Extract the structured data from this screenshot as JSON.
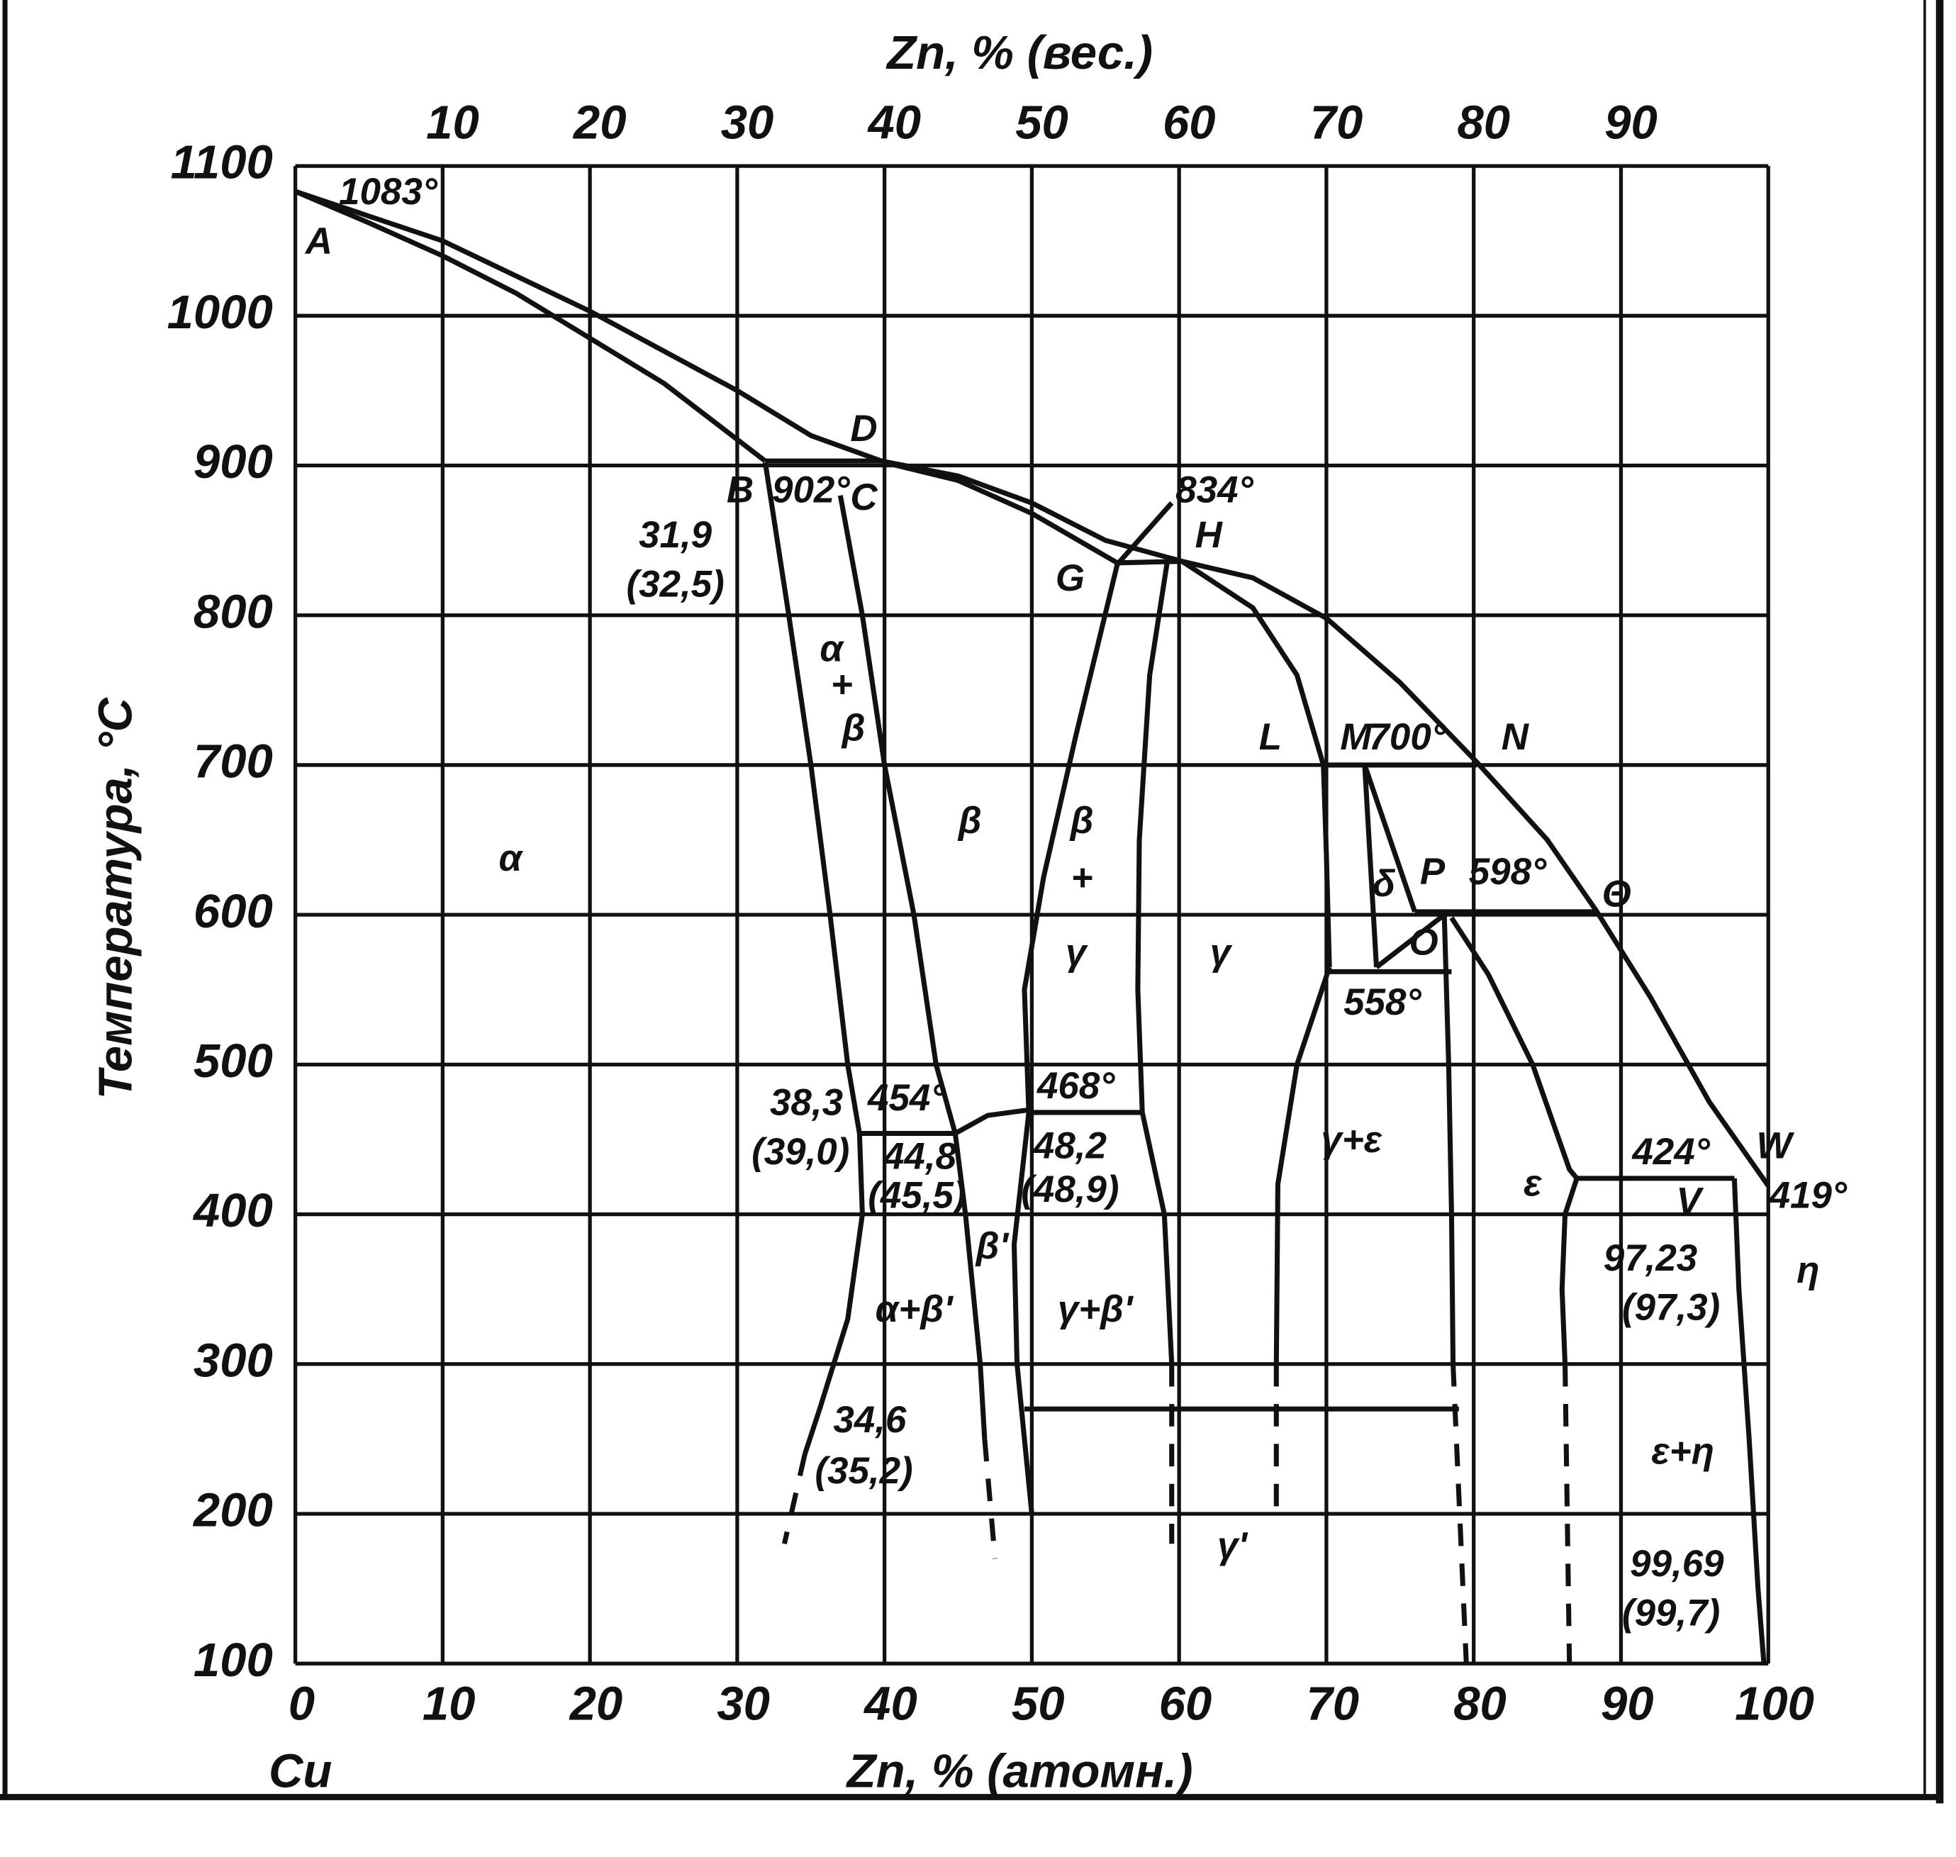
{
  "chart_data": {
    "type": "phase-diagram",
    "top_axis_title": "Zn, % (вес.)",
    "x_axis_title": "Zn, % (атомн.)",
    "y_axis_title": "Температура, °C",
    "x_origin_label": "Cu",
    "xlim": [
      0,
      100
    ],
    "ylim": [
      100,
      1100
    ],
    "xticks": [
      0,
      10,
      20,
      30,
      40,
      50,
      60,
      70,
      80,
      90,
      100
    ],
    "yticks": [
      100,
      200,
      300,
      400,
      500,
      600,
      700,
      800,
      900,
      1000,
      1100
    ],
    "x2ticks": [
      10,
      20,
      30,
      40,
      50,
      60,
      70,
      80,
      90
    ],
    "grid": true,
    "color": "#111111",
    "series": [
      {
        "x": [
          0,
          10,
          20,
          30,
          35,
          39.8,
          45,
          50,
          55,
          60.2,
          65,
          70,
          75,
          80.2,
          85,
          88.3,
          92,
          96,
          100
        ],
        "values": [
          1083,
          1050,
          1003,
          950,
          920,
          903,
          893,
          875,
          850,
          836,
          825,
          798,
          755,
          702,
          650,
          603,
          545,
          475,
          419
        ]
      },
      {
        "x": [
          0,
          5,
          10,
          15,
          20,
          25,
          31.9
        ],
        "values": [
          1083,
          1062,
          1040,
          1015,
          985,
          955,
          903
        ]
      },
      {
        "x": [
          31.9,
          40
        ],
        "values": [
          903,
          903
        ]
      },
      {
        "x": [
          40,
          45,
          50,
          55.8
        ],
        "values": [
          902,
          890,
          868,
          835
        ]
      },
      {
        "x": [
          55.8,
          60.2
        ],
        "values": [
          835,
          836
        ]
      },
      {
        "x": [
          31.9,
          33.5,
          35,
          36.3,
          37.5,
          38.3,
          38.5,
          37.5,
          35.6,
          34.6
        ],
        "values": [
          902,
          800,
          700,
          600,
          500,
          454,
          400,
          330,
          270,
          240
        ]
      },
      {
        "x": [
          34.6,
          33.2
        ],
        "values": [
          240,
          180
        ],
        "dash": true
      },
      {
        "x": [
          37,
          38.5,
          40,
          42,
          43.5,
          44.8,
          45.5,
          46.5,
          46.8
        ],
        "values": [
          880,
          800,
          700,
          600,
          500,
          454,
          400,
          300,
          250
        ]
      },
      {
        "x": [
          46.8,
          47.5
        ],
        "values": [
          250,
          170
        ],
        "dash": true
      },
      {
        "x": [
          38.3,
          44.8
        ],
        "values": [
          454,
          454
        ]
      },
      {
        "x": [
          44.8,
          47,
          50
        ],
        "values": [
          454,
          466,
          470
        ]
      },
      {
        "x": [
          50,
          57.5
        ],
        "values": [
          468,
          468
        ]
      },
      {
        "x": [
          55.8,
          53,
          50.8,
          49.5,
          49.8,
          48.8,
          49,
          49.5,
          50
        ],
        "values": [
          834,
          720,
          625,
          550,
          468,
          380,
          300,
          250,
          200
        ]
      },
      {
        "x": [
          59.2,
          58,
          57.3,
          57.2,
          57.5,
          59,
          59.5
        ],
        "values": [
          836,
          760,
          650,
          550,
          468,
          400,
          300
        ]
      },
      {
        "x": [
          59.5,
          59.5
        ],
        "values": [
          300,
          180
        ],
        "dash": true
      },
      {
        "x": [
          60.2,
          65,
          68,
          69.8,
          70,
          70.2
        ],
        "values": [
          836,
          805,
          760,
          700,
          640,
          565
        ]
      },
      {
        "x": [
          69.8,
          80.2
        ],
        "values": [
          700,
          700
        ]
      },
      {
        "x": [
          72.6,
          73.4
        ],
        "values": [
          700,
          565
        ]
      },
      {
        "x": [
          72.6,
          76
        ],
        "values": [
          700,
          602
        ]
      },
      {
        "x": [
          76,
          88.3
        ],
        "values": [
          602,
          602
        ]
      },
      {
        "x": [
          73.4,
          78
        ],
        "values": [
          565,
          600
        ]
      },
      {
        "x": [
          70.2,
          78.5
        ],
        "values": [
          562,
          562
        ]
      },
      {
        "x": [
          78,
          78.3,
          78.5,
          78.6
        ],
        "values": [
          600,
          500,
          400,
          300
        ]
      },
      {
        "x": [
          78.6,
          79.5
        ],
        "values": [
          300,
          100
        ],
        "dash": true
      },
      {
        "x": [
          70.2,
          68,
          66.7,
          66.6
        ],
        "values": [
          565,
          500,
          420,
          300
        ]
      },
      {
        "x": [
          66.6,
          66.6
        ],
        "values": [
          300,
          200
        ],
        "dash": true
      },
      {
        "x": [
          78.5,
          81,
          84,
          86.5,
          87
        ],
        "values": [
          598,
          560,
          500,
          430,
          424
        ]
      },
      {
        "x": [
          87,
          97.7
        ],
        "values": [
          424,
          424
        ]
      },
      {
        "x": [
          87,
          86.2,
          86,
          86.2
        ],
        "values": [
          424,
          400,
          350,
          300
        ]
      },
      {
        "x": [
          86.2,
          86.5
        ],
        "values": [
          300,
          100
        ],
        "dash": true
      },
      {
        "x": [
          97.7,
          98,
          98.7,
          99.3,
          99.7
        ],
        "values": [
          424,
          350,
          250,
          150,
          100
        ]
      },
      {
        "x": [
          49.5,
          79
        ],
        "values": [
          270,
          270
        ]
      },
      {
        "x": [
          55.8,
          59.5
        ],
        "values": [
          834,
          875
        ]
      }
    ],
    "annotations": [
      "1083°",
      "A",
      "D",
      "B",
      "902°",
      "C",
      "31,9",
      "(32,5)",
      "834°",
      "H",
      "G",
      "α",
      "+",
      "β",
      "α",
      "β",
      "β",
      "+",
      "γ",
      "γ",
      "L",
      "M",
      "700°",
      "N",
      "P",
      "δ",
      "598°",
      "Θ",
      "O",
      "558°",
      "38,3",
      "(39,0)",
      "454°",
      "44,8",
      "(45,5)",
      "468°",
      "48,2",
      "(48,9)",
      "β'",
      "α+β'",
      "γ+β'",
      "γ+ε",
      "ε",
      "424°",
      "W",
      "V",
      "419°",
      "97,23",
      "(97,3)",
      "η",
      "34,6",
      "(35,2)",
      "ε+η",
      "γ'",
      "99,69",
      "(99,7)"
    ]
  }
}
